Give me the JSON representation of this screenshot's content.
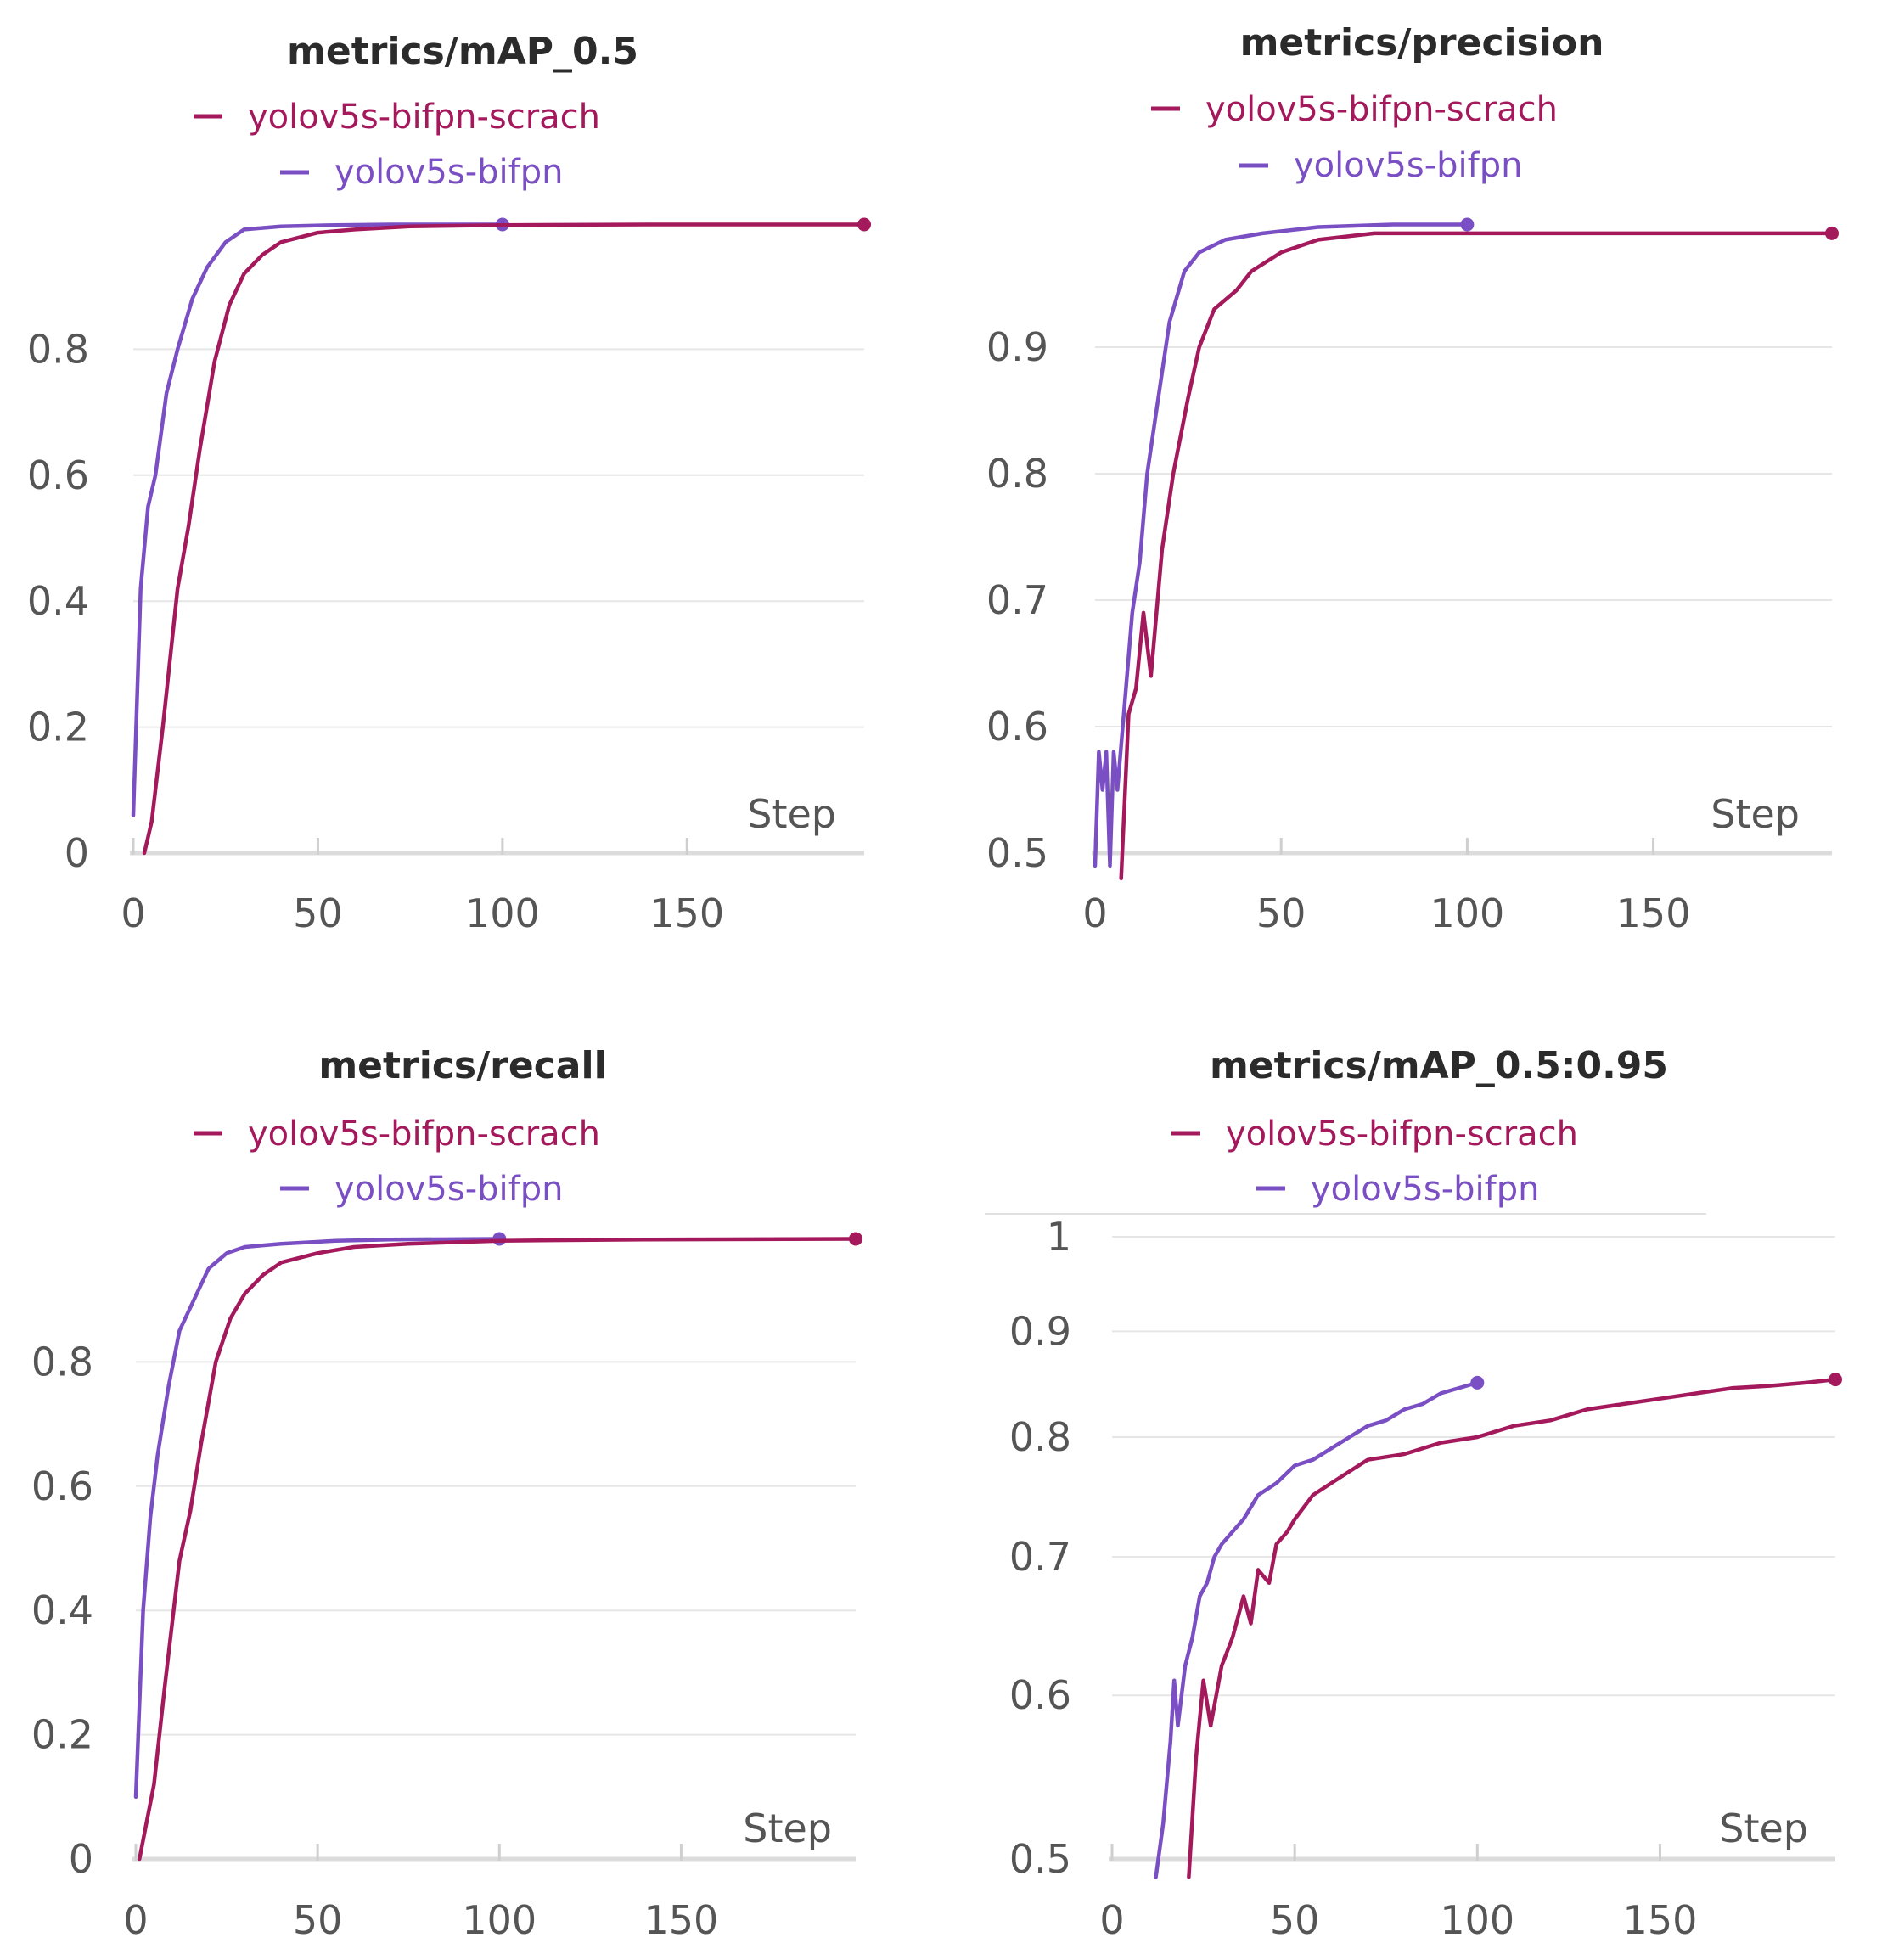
{
  "colors": {
    "scratch": "#a3195b",
    "bifpn": "#7b4fc4",
    "grid": "#e6e6e6",
    "text": "#555555"
  },
  "chart_data": [
    {
      "type": "line",
      "title": "metrics/mAP_0.5",
      "xlabel": "Step",
      "ylabel": "",
      "xlim": [
        0,
        198
      ],
      "ylim": [
        0,
        1
      ],
      "log_y": false,
      "xticks": [
        0,
        50,
        100,
        150
      ],
      "yticks": [
        0,
        0.2,
        0.4,
        0.6,
        0.8
      ],
      "ytick_labels": [
        "0",
        "0.2",
        "0.4",
        "0.6",
        "0.8"
      ],
      "xtick_labels": [
        "0",
        "50",
        "100",
        "150"
      ],
      "grid": true,
      "legend_position": "top",
      "series": [
        {
          "name": "yolov5s-bifpn-scrach",
          "color": "#a3195b",
          "x": [
            3,
            5,
            8,
            12,
            15,
            18,
            22,
            26,
            30,
            35,
            40,
            50,
            60,
            75,
            100,
            140,
            198
          ],
          "y": [
            0.0,
            0.05,
            0.2,
            0.42,
            0.52,
            0.64,
            0.78,
            0.87,
            0.92,
            0.95,
            0.97,
            0.985,
            0.99,
            0.995,
            0.997,
            0.998,
            0.998
          ]
        },
        {
          "name": "yolov5s-bifpn",
          "color": "#7b4fc4",
          "x": [
            0,
            2,
            4,
            6,
            9,
            12,
            16,
            20,
            25,
            30,
            40,
            55,
            70,
            100
          ],
          "y": [
            0.06,
            0.42,
            0.55,
            0.6,
            0.73,
            0.8,
            0.88,
            0.93,
            0.97,
            0.99,
            0.995,
            0.997,
            0.998,
            0.998
          ]
        }
      ]
    },
    {
      "type": "line",
      "title": "metrics/precision",
      "xlabel": "Step",
      "ylabel": "",
      "xlim": [
        0,
        198
      ],
      "ylim": [
        0.5,
        1.0
      ],
      "log_y": false,
      "xticks": [
        0,
        50,
        100,
        150
      ],
      "yticks": [
        0.5,
        0.6,
        0.7,
        0.8,
        0.9
      ],
      "ytick_labels": [
        "0.5",
        "0.6",
        "0.7",
        "0.8",
        "0.9"
      ],
      "xtick_labels": [
        "0",
        "50",
        "100",
        "150"
      ],
      "grid": true,
      "legend_position": "top",
      "series": [
        {
          "name": "yolov5s-bifpn-scrach",
          "color": "#a3195b",
          "x": [
            7,
            9,
            11,
            13,
            15,
            18,
            21,
            25,
            28,
            32,
            38,
            42,
            50,
            60,
            75,
            100,
            130,
            160,
            198
          ],
          "y": [
            0.48,
            0.61,
            0.63,
            0.69,
            0.64,
            0.74,
            0.8,
            0.86,
            0.9,
            0.93,
            0.945,
            0.96,
            0.975,
            0.985,
            0.99,
            0.99,
            0.99,
            0.99,
            0.99
          ]
        },
        {
          "name": "yolov5s-bifpn",
          "color": "#7b4fc4",
          "x": [
            0,
            1,
            2,
            3,
            4,
            5,
            6,
            8,
            10,
            12,
            14,
            17,
            20,
            24,
            28,
            35,
            45,
            60,
            80,
            100
          ],
          "y": [
            0.49,
            0.58,
            0.55,
            0.58,
            0.49,
            0.58,
            0.55,
            0.62,
            0.69,
            0.73,
            0.8,
            0.86,
            0.92,
            0.96,
            0.975,
            0.985,
            0.99,
            0.995,
            0.997,
            0.997
          ]
        }
      ]
    },
    {
      "type": "line",
      "title": "metrics/recall",
      "xlabel": "Step",
      "ylabel": "",
      "xlim": [
        0,
        198
      ],
      "ylim": [
        0,
        1
      ],
      "log_y": false,
      "xticks": [
        0,
        50,
        100,
        150
      ],
      "yticks": [
        0,
        0.2,
        0.4,
        0.6,
        0.8
      ],
      "ytick_labels": [
        "0",
        "0.2",
        "0.4",
        "0.6",
        "0.8"
      ],
      "xtick_labels": [
        "0",
        "50",
        "100",
        "150"
      ],
      "grid": true,
      "legend_position": "top",
      "series": [
        {
          "name": "yolov5s-bifpn-scrach",
          "color": "#a3195b",
          "x": [
            1,
            3,
            5,
            8,
            12,
            15,
            18,
            22,
            26,
            30,
            35,
            40,
            50,
            60,
            75,
            100,
            140,
            198
          ],
          "y": [
            0.0,
            0.06,
            0.12,
            0.28,
            0.48,
            0.56,
            0.67,
            0.8,
            0.87,
            0.91,
            0.94,
            0.96,
            0.975,
            0.985,
            0.99,
            0.995,
            0.997,
            0.998
          ]
        },
        {
          "name": "yolov5s-bifpn",
          "color": "#7b4fc4",
          "x": [
            0,
            2,
            4,
            6,
            9,
            12,
            16,
            20,
            25,
            30,
            40,
            55,
            70,
            100
          ],
          "y": [
            0.1,
            0.4,
            0.55,
            0.65,
            0.76,
            0.85,
            0.9,
            0.95,
            0.975,
            0.985,
            0.99,
            0.995,
            0.997,
            0.998
          ]
        }
      ]
    },
    {
      "type": "line",
      "title": "metrics/mAP_0.5:0.95",
      "xlabel": "Step",
      "ylabel": "",
      "xlim": [
        0,
        198
      ],
      "ylim": [
        0.5,
        1.0
      ],
      "log_y": true,
      "xticks": [
        0,
        50,
        100,
        150
      ],
      "yticks": [
        0.5,
        0.6,
        0.7,
        0.8,
        0.9,
        1
      ],
      "ytick_labels": [
        "0.5",
        "0.6",
        "0.7",
        "0.8",
        "0.9",
        "1"
      ],
      "xtick_labels": [
        "0",
        "50",
        "100",
        "150"
      ],
      "grid": true,
      "legend_position": "top",
      "series": [
        {
          "name": "yolov5s-bifpn-scrach",
          "color": "#a3195b",
          "x": [
            21,
            23,
            25,
            27,
            30,
            33,
            36,
            38,
            40,
            43,
            45,
            48,
            50,
            55,
            60,
            65,
            70,
            80,
            90,
            100,
            110,
            120,
            130,
            140,
            150,
            160,
            170,
            180,
            190,
            198
          ],
          "y": [
            0.49,
            0.56,
            0.61,
            0.58,
            0.62,
            0.64,
            0.67,
            0.65,
            0.69,
            0.68,
            0.71,
            0.72,
            0.73,
            0.75,
            0.76,
            0.77,
            0.78,
            0.785,
            0.795,
            0.8,
            0.81,
            0.815,
            0.825,
            0.83,
            0.835,
            0.84,
            0.845,
            0.847,
            0.85,
            0.853
          ]
        },
        {
          "name": "yolov5s-bifpn",
          "color": "#7b4fc4",
          "x": [
            12,
            14,
            16,
            17,
            18,
            20,
            22,
            24,
            26,
            28,
            30,
            33,
            36,
            40,
            45,
            50,
            55,
            60,
            65,
            70,
            75,
            80,
            85,
            90,
            95,
            100
          ],
          "y": [
            0.49,
            0.52,
            0.57,
            0.61,
            0.58,
            0.62,
            0.64,
            0.67,
            0.68,
            0.7,
            0.71,
            0.72,
            0.73,
            0.75,
            0.76,
            0.775,
            0.78,
            0.79,
            0.8,
            0.81,
            0.815,
            0.825,
            0.83,
            0.84,
            0.845,
            0.85
          ]
        }
      ]
    }
  ]
}
